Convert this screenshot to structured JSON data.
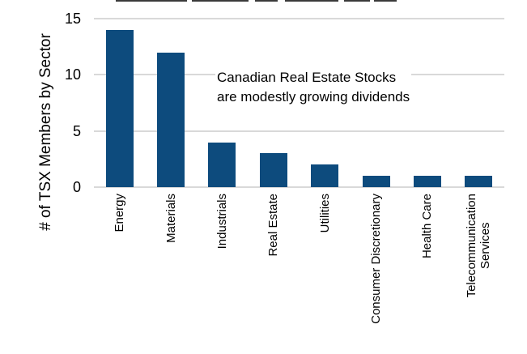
{
  "chart_data": {
    "type": "bar",
    "categories": [
      "Energy",
      "Materials",
      "Industrials",
      "Real Estate",
      "Utilities",
      "Consumer Discretionary",
      "Health Care",
      "Telecommunication\nServices"
    ],
    "values": [
      14,
      12,
      4,
      3,
      2,
      1,
      1,
      1
    ],
    "title": "",
    "xlabel": "",
    "ylabel": "# of TSX Members by Sector",
    "ylim": [
      0,
      15
    ],
    "yticks": [
      0,
      5,
      10,
      15
    ],
    "grid": "horizontal",
    "legend": "none",
    "bar_color": "#0d4b7d",
    "gridline_color": "#d9d9d9",
    "text_color": "#000000",
    "annotation": {
      "text": "Canadian Real Estate Stocks\nare modestly growing dividends",
      "color": "#000000"
    }
  }
}
